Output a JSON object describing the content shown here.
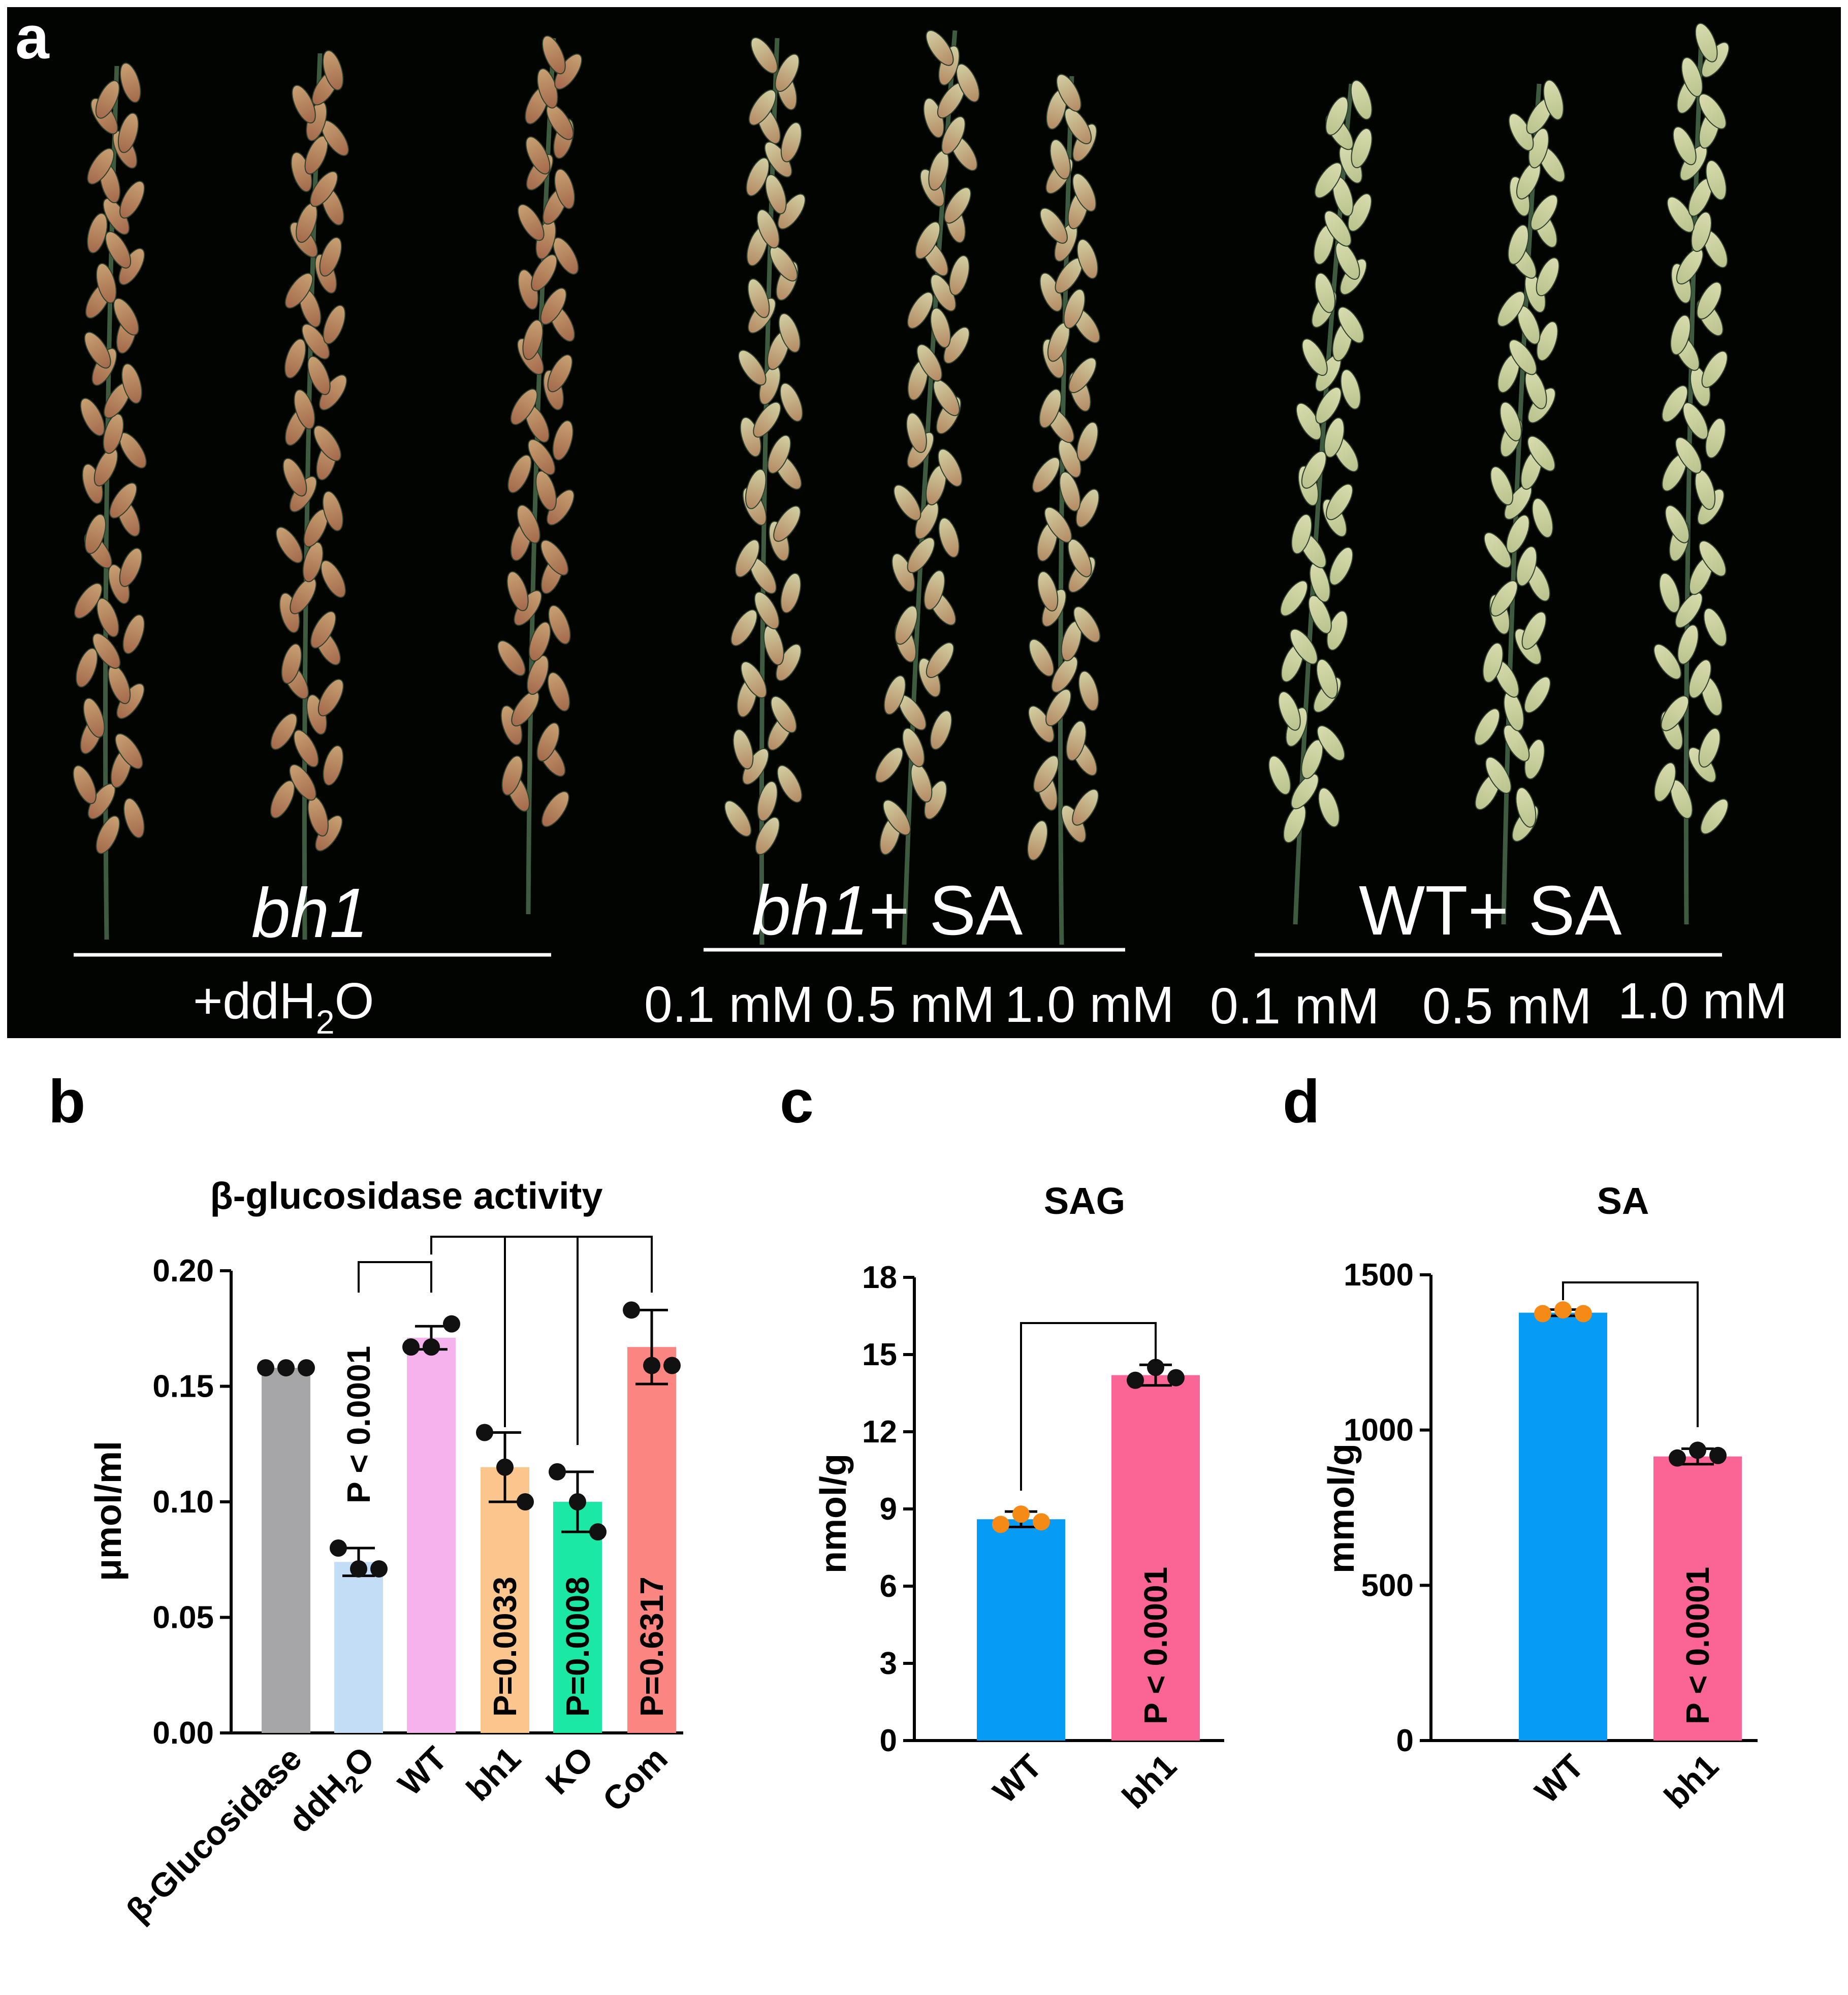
{
  "panel_a": {
    "label": "a",
    "groups": [
      {
        "genotype": "bh1",
        "treatment": "",
        "sub": "+ddH",
        "sub2": "2",
        "sub3": "O"
      },
      {
        "genotype": "bh1",
        "treatment": "+ SA",
        "concentrations": [
          "0.1 mM",
          "0.5 mM",
          "1.0 mM"
        ]
      },
      {
        "genotype": "WT",
        "treatment": "+ SA",
        "concentrations": [
          "0.1 mM",
          "0.5 mM",
          "1.0 mM"
        ]
      }
    ],
    "colors": {
      "background": "#020402",
      "stem": "#3f5b3f",
      "grain_bh1": "#b88a5c",
      "grain_wt": "#c9cf9a",
      "text": "#ffffff"
    }
  },
  "chart_data": [
    {
      "panel_label": "b",
      "type": "bar",
      "title": "β-glucosidase activity",
      "ylabel": "μmol/ml",
      "ylim": [
        0,
        0.2
      ],
      "yticks": [
        "0.00",
        "0.05",
        "0.10",
        "0.15",
        "0.20"
      ],
      "categories": [
        "β-Glucosidase",
        "ddH",
        "WT",
        "bh1",
        "KO",
        "Com"
      ],
      "category_subscripts": {
        "ddH": [
          "2",
          "O"
        ]
      },
      "values": [
        0.158,
        0.074,
        0.171,
        0.115,
        0.1,
        0.167
      ],
      "errors": [
        0.0,
        0.006,
        0.005,
        0.015,
        0.013,
        0.016
      ],
      "points": [
        [
          0.158,
          0.158,
          0.158
        ],
        [
          0.08,
          0.071,
          0.071
        ],
        [
          0.167,
          0.167,
          0.177
        ],
        [
          0.13,
          0.115,
          0.1
        ],
        [
          0.113,
          0.1,
          0.087
        ],
        [
          0.183,
          0.159,
          0.159
        ]
      ],
      "colors": [
        "#a6a6a8",
        "#c3ddf6",
        "#f6b2ec",
        "#fbc68e",
        "#1ce8a6",
        "#fa8581"
      ],
      "point_color": "#111111",
      "comparisons": [
        {
          "ref": "WT",
          "target": "ddH",
          "label": "P < 0.0001"
        },
        {
          "ref": "WT",
          "target": "bh1",
          "label": "P=0.0033"
        },
        {
          "ref": "WT",
          "target": "KO",
          "label": "P=0.0008"
        },
        {
          "ref": "WT",
          "target": "Com",
          "label": "P=0.6317"
        }
      ]
    },
    {
      "panel_label": "c",
      "type": "bar",
      "title": "SAG",
      "ylabel": "nmol/g",
      "ylim": [
        0,
        18
      ],
      "yticks": [
        "0",
        "3",
        "6",
        "9",
        "12",
        "15",
        "18"
      ],
      "categories": [
        "WT",
        "bh1"
      ],
      "values": [
        8.6,
        14.2
      ],
      "errors": [
        0.3,
        0.4
      ],
      "points": [
        [
          8.4,
          8.8,
          8.5
        ],
        [
          14.0,
          14.5,
          14.1
        ]
      ],
      "colors": [
        "#069cf6",
        "#fb6595"
      ],
      "point_colors": [
        "#f58a16",
        "#111111"
      ],
      "comparisons": [
        {
          "ref": "WT",
          "target": "bh1",
          "label": "P < 0.0001"
        }
      ]
    },
    {
      "panel_label": "d",
      "type": "bar",
      "title": "SA",
      "ylabel": "mmol/g",
      "ylim": [
        0,
        1500
      ],
      "yticks": [
        "0",
        "500",
        "1000",
        "1500"
      ],
      "categories": [
        "WT",
        "bh1"
      ],
      "values": [
        1378,
        915
      ],
      "errors": [
        10,
        25
      ],
      "points": [
        [
          1375,
          1387,
          1375
        ],
        [
          910,
          935,
          918
        ]
      ],
      "colors": [
        "#069cf6",
        "#fb6595"
      ],
      "point_colors": [
        "#f58a16",
        "#111111"
      ],
      "comparisons": [
        {
          "ref": "WT",
          "target": "bh1",
          "label": "P < 0.0001"
        }
      ]
    }
  ]
}
